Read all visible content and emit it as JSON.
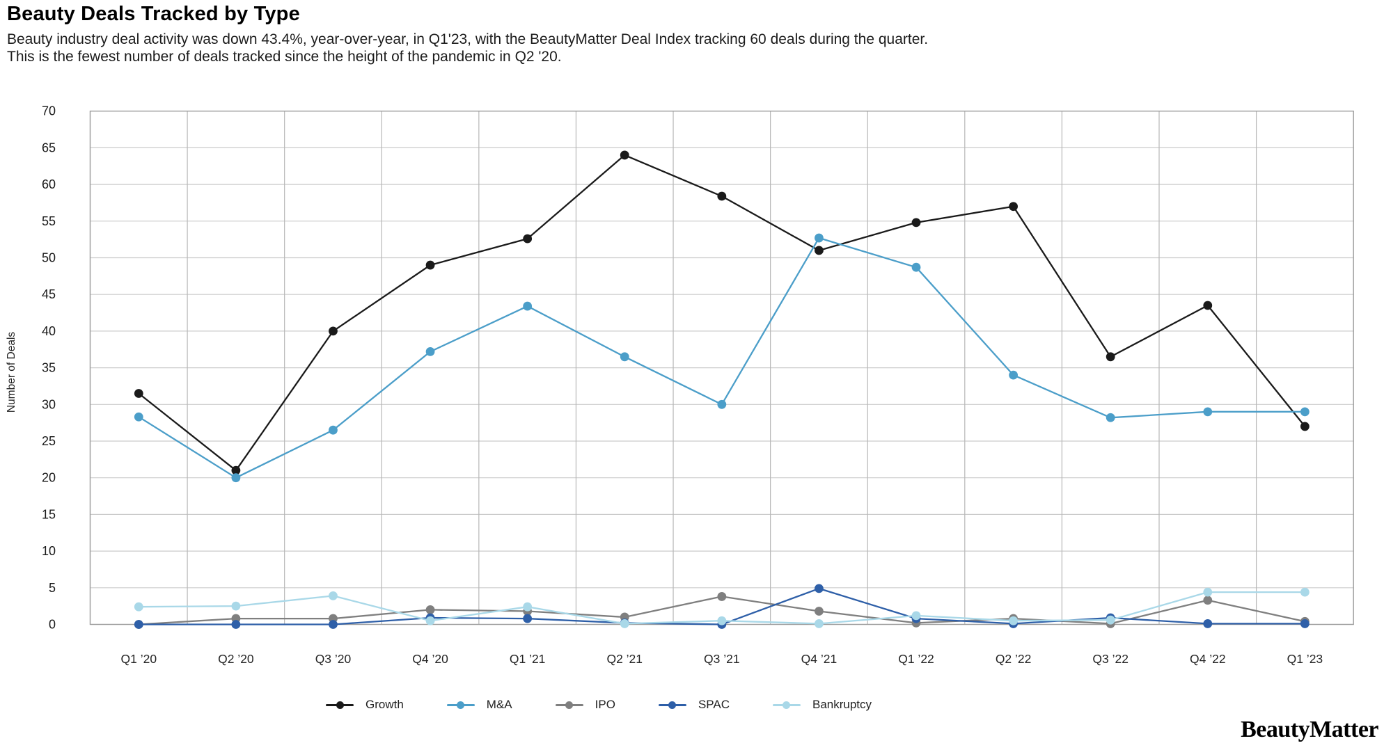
{
  "page": {
    "title": "Beauty Deals Tracked by Type",
    "subtitle_line1": "Beauty industry deal activity was down 43.4%, year-over-year, in Q1'23, with the BeautyMatter Deal Index tracking 60 deals during the quarter.",
    "subtitle_line2": "This is the fewest number of deals tracked since the height of the pandemic in Q2 '20.",
    "logo": "BeautyMatter"
  },
  "chart_data": {
    "type": "line",
    "title": "Beauty Deals Tracked by Type",
    "xlabel": "",
    "ylabel": "Number of Deals",
    "ylim": [
      0,
      70
    ],
    "ytick_step": 5,
    "grid": true,
    "legend_position": "bottom",
    "categories": [
      "Q1 ’20",
      "Q2 ’20",
      "Q3 ’20",
      "Q4 ’20",
      "Q1 ’21",
      "Q2 ’21",
      "Q3 ’21",
      "Q4 ’21",
      "Q1 ’22",
      "Q2 ’22",
      "Q3 ’22",
      "Q4 ’22",
      "Q1 ’23"
    ],
    "series": [
      {
        "name": "Growth",
        "color": "#1a1a1a",
        "values": [
          31.5,
          21,
          40,
          49,
          52.6,
          64,
          58.4,
          51,
          54.8,
          57,
          36.5,
          43.5,
          27
        ]
      },
      {
        "name": "M&A",
        "color": "#4b9ec9",
        "values": [
          28.3,
          20,
          26.5,
          37.2,
          43.4,
          36.5,
          30,
          52.7,
          48.7,
          34,
          28.2,
          29,
          29
        ]
      },
      {
        "name": "IPO",
        "color": "#7f7f7f",
        "values": [
          0,
          0.8,
          0.8,
          2,
          1.8,
          1,
          3.8,
          1.8,
          0.2,
          0.8,
          0.1,
          3.3,
          0.4
        ]
      },
      {
        "name": "SPAC",
        "color": "#2e5fa8",
        "values": [
          0,
          0,
          0,
          0.9,
          0.8,
          0.2,
          0,
          4.9,
          0.8,
          0.1,
          0.9,
          0.1,
          0.1
        ]
      },
      {
        "name": "Bankruptcy",
        "color": "#a9d8e8",
        "values": [
          2.4,
          2.5,
          3.9,
          0.5,
          2.4,
          0.1,
          0.5,
          0.1,
          1.2,
          0.5,
          0.6,
          4.4,
          4.4
        ]
      }
    ]
  }
}
